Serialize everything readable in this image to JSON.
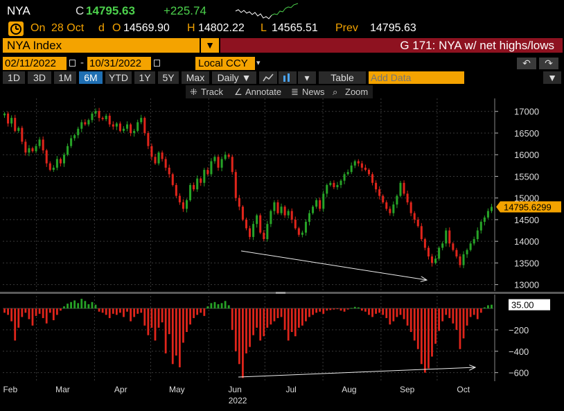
{
  "header": {
    "symbol": "NYA",
    "last_label": "C",
    "last": "14795.63",
    "change": "+225.74"
  },
  "quote": {
    "on_label": "On",
    "date": "28 Oct",
    "d_label": "d",
    "open_label": "O",
    "open": "14569.90",
    "high_label": "H",
    "high": "14802.22",
    "low_label": "L",
    "low": "14565.51",
    "prev_label": "Prev",
    "prev": "14795.63"
  },
  "security": {
    "ticker": "NYA Index",
    "dropdown_glyph": "▼",
    "graph_title": "G 171: NYA w/ net highs/lows"
  },
  "range": {
    "start": "02/11/2022",
    "dash": "-",
    "end": "10/31/2022",
    "currency": "Local CCY",
    "dd": "▾",
    "undo": "↶",
    "redo": "↷"
  },
  "toolbar": {
    "periods": [
      "1D",
      "3D",
      "1M",
      "6M",
      "YTD",
      "1Y",
      "5Y",
      "Max"
    ],
    "selected_period": "6M",
    "frequency": "Daily ▼",
    "table_label": "Table",
    "add_data_placeholder": "Add Data",
    "more": "▾",
    "menu": "▼"
  },
  "subtools": {
    "track": "Track",
    "annotate": "Annotate",
    "news": "News",
    "zoom": "Zoom"
  },
  "colors": {
    "up": "#27a327",
    "down": "#e0251b",
    "orange": "#f4a300",
    "title_red": "#8e1220",
    "grid": "#3a3a3a"
  },
  "chart_data": [
    {
      "type": "candlestick",
      "name": "NYA price",
      "ylim": [
        12850,
        17300
      ],
      "yticks": [
        13000,
        13500,
        14000,
        14500,
        15000,
        15500,
        16000,
        16500,
        17000
      ],
      "last_value_label": "14795.6299",
      "last_value": 14795.63,
      "x_start": "2022-02-11",
      "x_end": "2022-10-31",
      "closes": [
        16950,
        16720,
        16850,
        16550,
        16620,
        16300,
        16050,
        16150,
        16080,
        16200,
        16350,
        16100,
        15800,
        15650,
        15700,
        15900,
        15800,
        16000,
        16200,
        16380,
        16450,
        16600,
        16750,
        16700,
        16800,
        16950,
        17010,
        16850,
        16820,
        16900,
        16700,
        16650,
        16720,
        16550,
        16600,
        16700,
        16500,
        16550,
        16750,
        16850,
        16500,
        16200,
        15950,
        15800,
        16050,
        15900,
        15700,
        15550,
        15300,
        15050,
        14900,
        14750,
        14950,
        15300,
        15200,
        15450,
        15350,
        15650,
        15550,
        15850,
        15950,
        15700,
        15900,
        16000,
        15950,
        15600,
        15000,
        14800,
        14500,
        14300,
        14100,
        14400,
        14600,
        14200,
        14050,
        14400,
        14700,
        14900,
        14650,
        14800,
        14600,
        14700,
        14500,
        14300,
        14150,
        14200,
        14450,
        14650,
        14800,
        14950,
        14750,
        15100,
        15300,
        15350,
        15250,
        15300,
        15400,
        15550,
        15600,
        15750,
        15850,
        15800,
        15700,
        15650,
        15550,
        15350,
        15200,
        15050,
        14900,
        14750,
        14650,
        14850,
        15050,
        15350,
        15100,
        14900,
        14650,
        14500,
        14350,
        14050,
        13850,
        13650,
        13500,
        13600,
        13850,
        13950,
        14250,
        13950,
        13800,
        13650,
        13450,
        13700,
        13800,
        13950,
        14050,
        14250,
        14450,
        14550,
        14700,
        14795.63
      ]
    },
    {
      "type": "bar",
      "name": "Net highs/lows",
      "ylim": [
        -680,
        130
      ],
      "yticks": [
        -600,
        -400,
        -200
      ],
      "last_value_label": "35.00",
      "last_value": 35,
      "x_labels": [
        "Feb",
        "Mar",
        "Apr",
        "May",
        "Jun",
        "Jul",
        "Aug",
        "Sep",
        "Oct"
      ],
      "x_label_months": [
        2,
        3,
        4,
        5,
        6,
        7,
        8,
        9,
        10
      ],
      "year_label": "2022",
      "year_label_month": 6,
      "values": [
        -40,
        -60,
        -120,
        -300,
        -180,
        -80,
        -40,
        -100,
        -160,
        -70,
        -50,
        -90,
        -140,
        -40,
        -110,
        -60,
        -20,
        20,
        45,
        60,
        75,
        50,
        90,
        70,
        40,
        60,
        35,
        -30,
        -40,
        -60,
        -90,
        -50,
        -60,
        -40,
        -80,
        -30,
        -120,
        -80,
        -50,
        -40,
        -160,
        -250,
        -180,
        -300,
        -180,
        -130,
        -420,
        -240,
        -520,
        -440,
        -550,
        -320,
        -220,
        -150,
        -90,
        -60,
        -40,
        -70,
        20,
        50,
        60,
        40,
        50,
        70,
        30,
        -200,
        -400,
        -520,
        -650,
        -420,
        -360,
        -250,
        -180,
        -300,
        -260,
        -180,
        -150,
        -120,
        -90,
        -80,
        -200,
        -300,
        -220,
        -260,
        -180,
        -160,
        -120,
        -80,
        -60,
        -40,
        -30,
        -50,
        -20,
        -15,
        -10,
        -5,
        -20,
        -30,
        -10,
        5,
        15,
        10,
        -20,
        -30,
        -60,
        -80,
        -50,
        -40,
        -60,
        -90,
        -150,
        -120,
        -80,
        -60,
        -100,
        -160,
        -220,
        -300,
        -380,
        -520,
        -600,
        -560,
        -450,
        -330,
        -210,
        -120,
        -60,
        -90,
        -140,
        -200,
        -380,
        -280,
        -160,
        -80,
        -60,
        -100,
        -40,
        10,
        30,
        35
      ]
    }
  ]
}
